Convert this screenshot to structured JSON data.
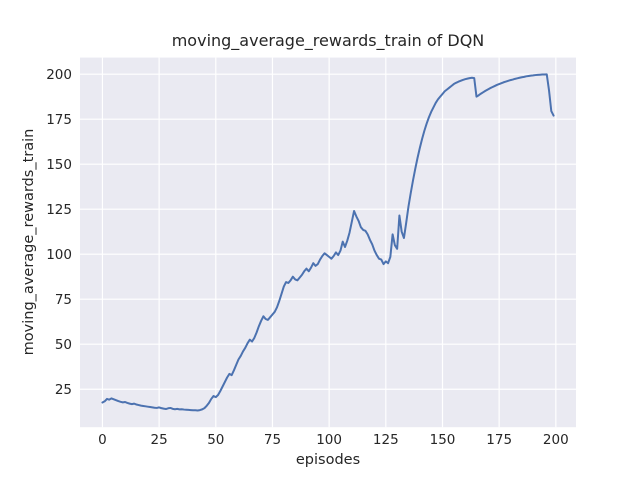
{
  "figure": {
    "title": "moving_average_rewards_train of DQN",
    "xlabel": "episodes",
    "ylabel": "moving_average_rewards_train"
  },
  "chart_data": {
    "type": "line",
    "title": "moving_average_rewards_train of DQN",
    "xlabel": "episodes",
    "ylabel": "moving_average_rewards_train",
    "grid": true,
    "legend": "none",
    "plot_bg_color": "#EAEAF2",
    "grid_color": "#FFFFFF",
    "text_color": "#262626",
    "line_color": "#4C72B0",
    "xticks": [
      0,
      25,
      50,
      75,
      100,
      125,
      150,
      175,
      200
    ],
    "yticks": [
      25,
      50,
      75,
      100,
      125,
      150,
      175,
      200
    ],
    "xlim": [
      -9.9,
      208.9
    ],
    "ylim": [
      3.9,
      209.2
    ],
    "series": [
      {
        "name": "moving_average_rewards_train",
        "x_start": 0,
        "x_step": 1,
        "values": [
          17.6,
          18.3,
          19.6,
          19.2,
          19.9,
          19.4,
          18.9,
          18.4,
          18.0,
          17.7,
          17.9,
          17.4,
          17.0,
          16.7,
          17.0,
          16.5,
          16.2,
          15.9,
          15.7,
          15.5,
          15.3,
          15.1,
          14.9,
          14.7,
          14.6,
          14.9,
          14.5,
          14.2,
          14.0,
          14.4,
          14.6,
          14.1,
          13.9,
          14.1,
          13.8,
          13.9,
          13.7,
          13.6,
          13.5,
          13.4,
          13.3,
          13.3,
          13.2,
          13.4,
          13.8,
          14.5,
          15.8,
          17.4,
          19.6,
          21.2,
          20.6,
          21.8,
          24.0,
          26.5,
          29.0,
          31.5,
          33.5,
          32.8,
          35.5,
          38.5,
          41.5,
          43.5,
          46.0,
          48.0,
          50.5,
          52.5,
          51.5,
          53.5,
          56.5,
          60.0,
          63.0,
          65.5,
          64.0,
          63.5,
          65.0,
          66.5,
          68.0,
          70.5,
          74.0,
          78.0,
          82.0,
          84.5,
          84.0,
          85.5,
          87.5,
          86.0,
          85.5,
          87.0,
          88.5,
          90.5,
          92.0,
          90.5,
          92.5,
          95.0,
          93.5,
          94.5,
          97.0,
          99.0,
          100.5,
          99.5,
          98.5,
          97.5,
          99.0,
          101.0,
          99.5,
          102.0,
          107.0,
          104.0,
          107.5,
          112.0,
          118.0,
          124.0,
          121.0,
          118.5,
          115.0,
          113.5,
          113.0,
          111.0,
          108.0,
          105.5,
          102.0,
          99.5,
          97.5,
          97.0,
          94.5,
          96.0,
          95.0,
          98.5,
          111.0,
          105.0,
          103.0,
          121.5,
          112.5,
          109.0,
          117.5,
          126.5,
          134.0,
          141.0,
          147.5,
          153.5,
          159.0,
          164.0,
          168.5,
          172.5,
          176.0,
          179.0,
          181.5,
          184.0,
          186.0,
          187.5,
          189.0,
          190.5,
          191.5,
          192.5,
          193.5,
          194.5,
          195.2,
          195.8,
          196.3,
          196.8,
          197.2,
          197.5,
          197.8,
          198.0,
          197.8,
          187.5,
          188.3,
          189.2,
          190.0,
          190.8,
          191.5,
          192.2,
          192.8,
          193.4,
          194.0,
          194.5,
          195.0,
          195.5,
          195.9,
          196.3,
          196.7,
          197.0,
          197.4,
          197.7,
          198.0,
          198.3,
          198.5,
          198.8,
          199.0,
          199.2,
          199.3,
          199.5,
          199.6,
          199.7,
          199.8,
          199.8,
          199.9,
          191.0,
          179.5,
          177.0
        ]
      }
    ]
  }
}
